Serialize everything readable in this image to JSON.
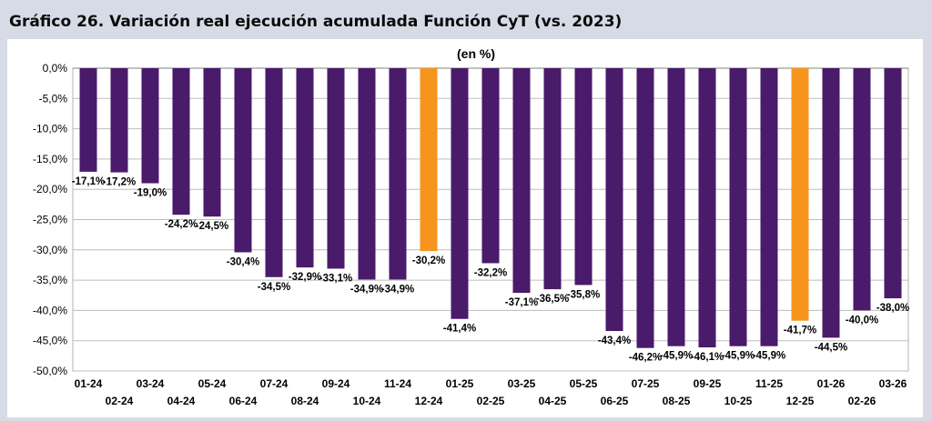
{
  "heading": "Gráfico 26. Variación real ejecución acumulada Función CyT (vs. 2023)",
  "colors": {
    "primary": "#4a1a6b",
    "highlight": "#f7941d",
    "background": "#d6dbe5"
  },
  "chart_data": {
    "type": "bar",
    "title": "Gráfico 26. Variación real ejecución acumulada Función CyT (vs. 2023)",
    "subtitle": "(en %)",
    "xlabel": "",
    "ylabel": "",
    "ylim": [
      -50,
      0
    ],
    "yticks": [
      "0,0%",
      "-5,0%",
      "-10,0%",
      "-15,0%",
      "-20,0%",
      "-25,0%",
      "-30,0%",
      "-35,0%",
      "-40,0%",
      "-45,0%",
      "-50,0%"
    ],
    "ytick_values": [
      0,
      -5,
      -10,
      -15,
      -20,
      -25,
      -30,
      -35,
      -40,
      -45,
      -50
    ],
    "grid": true,
    "categories": [
      "01-24",
      "02-24",
      "03-24",
      "04-24",
      "05-24",
      "06-24",
      "07-24",
      "08-24",
      "09-24",
      "10-24",
      "11-24",
      "12-24",
      "01-25",
      "02-25",
      "03-25",
      "04-25",
      "05-25",
      "06-25",
      "07-25",
      "08-25",
      "09-25",
      "10-25",
      "11-25",
      "12-25",
      "01-26",
      "02-26",
      "03-26"
    ],
    "values": [
      -17.1,
      -17.2,
      -19.0,
      -24.2,
      -24.5,
      -30.4,
      -34.5,
      -32.9,
      -33.1,
      -34.9,
      -34.9,
      -30.2,
      -41.4,
      -32.2,
      -37.1,
      -36.5,
      -35.8,
      -43.4,
      -46.2,
      -45.9,
      -46.1,
      -45.9,
      -45.9,
      -41.7,
      -44.5,
      -40.0,
      -38.0
    ],
    "data_labels": [
      "-17,1%",
      "-17,2%",
      "-19,0%",
      "-24,2%",
      "-24,5%",
      "-30,4%",
      "-34,5%",
      "-32,9%",
      "-33,1%",
      "-34,9%",
      "-34,9%",
      "-30,2%",
      "-41,4%",
      "-32,2%",
      "-37,1%",
      "-36,5%",
      "-35,8%",
      "-43,4%",
      "-46,2%",
      "-45,9%",
      "-46,1%",
      "-45,9%",
      "-45,9%",
      "-41,7%",
      "-44,5%",
      "-40,0%",
      "-38,0%"
    ],
    "highlighted_categories": [
      "12-24",
      "12-25"
    ]
  }
}
